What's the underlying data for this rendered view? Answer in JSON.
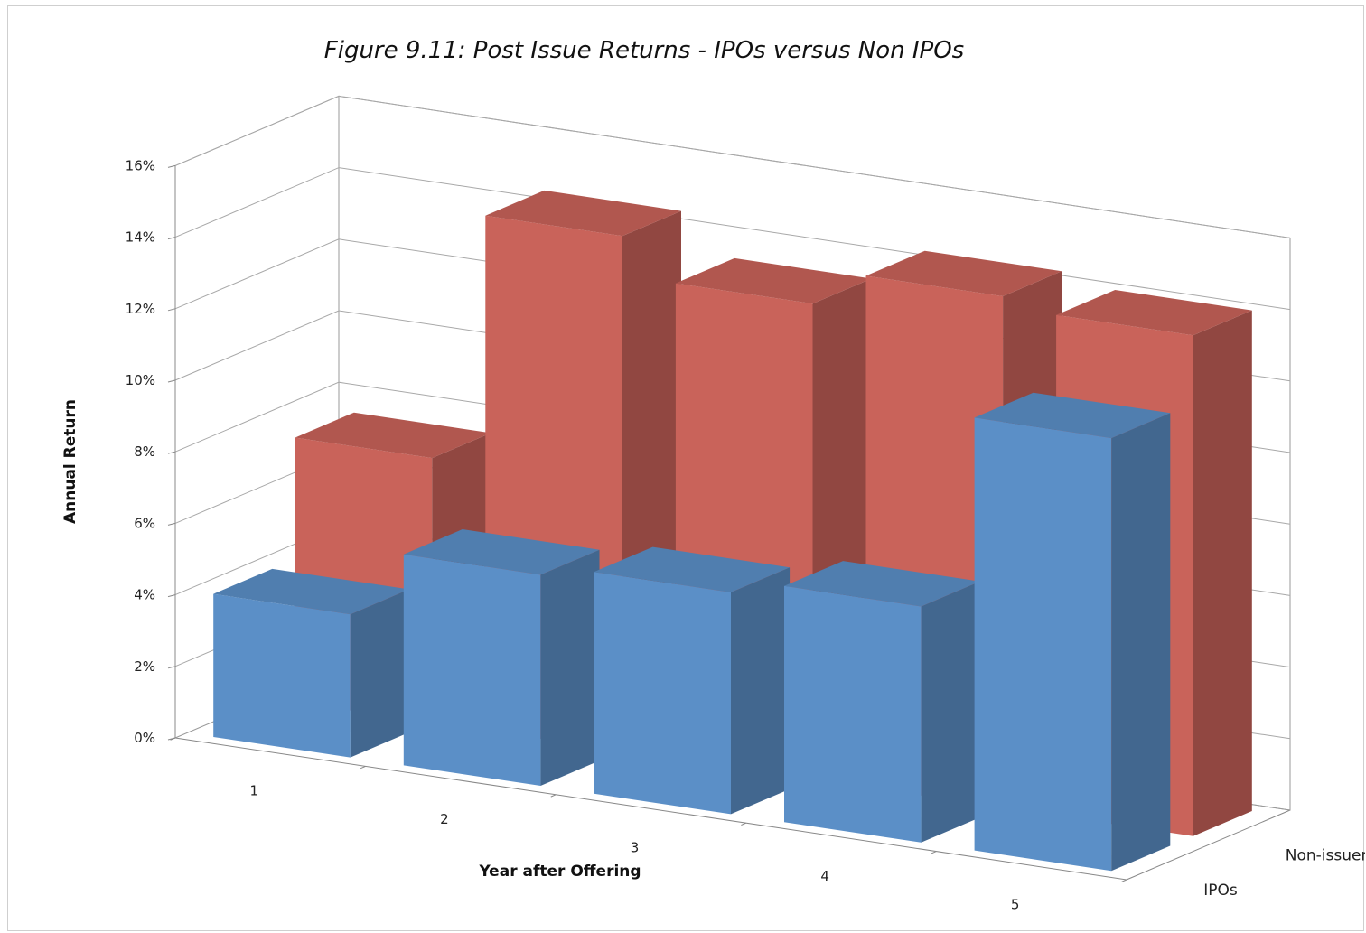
{
  "chart_data": {
    "type": "bar",
    "title": "Figure 9.11: Post Issue Returns - IPOs versus Non IPOs",
    "xlabel": "Year after Offering",
    "ylabel": "Annual Return",
    "categories": [
      "1",
      "2",
      "3",
      "4",
      "5"
    ],
    "series": [
      {
        "name": "IPOs",
        "values": [
          4.0,
          5.9,
          6.2,
          6.6,
          12.1
        ],
        "color": "#5b8fc7"
      },
      {
        "name": "Non-issuers",
        "values": [
          7.4,
          14.4,
          13.3,
          14.3,
          14.0
        ],
        "color": "#c9635a"
      }
    ],
    "ylim": [
      0,
      16
    ],
    "yticks": [
      "0%",
      "2%",
      "4%",
      "6%",
      "8%",
      "10%",
      "12%",
      "14%",
      "16%"
    ],
    "grid": true,
    "view": "3d-column"
  }
}
